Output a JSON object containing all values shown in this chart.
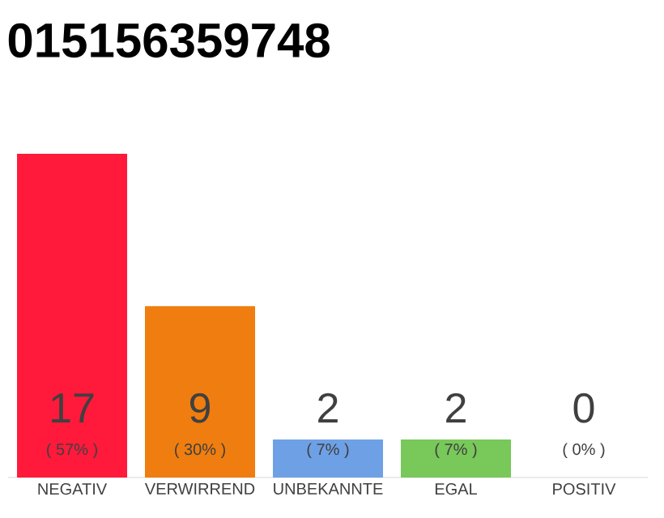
{
  "chart_data": {
    "type": "bar",
    "title": "015156359748",
    "categories": [
      "NEGATIV",
      "VERWIRREND",
      "UNBEKANNTE",
      "EGAL",
      "POSITIV"
    ],
    "values": [
      17,
      9,
      2,
      2,
      0
    ],
    "colors": [
      "#ff1a3c",
      "#f07d0f",
      "#6ea0e6",
      "#78c85a",
      "#e0e0e0"
    ],
    "data_labels": true,
    "annotations": [
      "( 57% )",
      "( 30% )",
      "( 7% )",
      "( 7% )",
      "( 0% )"
    ]
  }
}
